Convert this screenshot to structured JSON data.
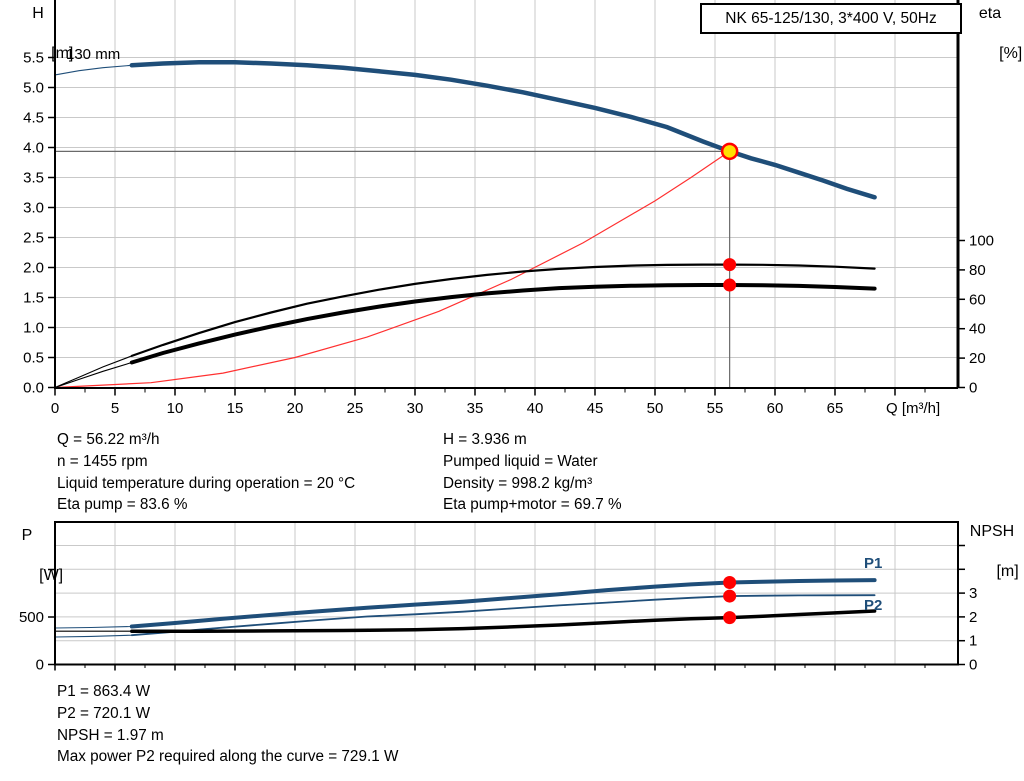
{
  "title_box": "NK 65-125/130, 3*400 V, 50Hz",
  "colors": {
    "curve_blue": "#1f4e79",
    "curve_black": "#000000",
    "system_red": "#ff3030",
    "dot_red": "#ff0000",
    "duty_yellow": "#ffe000",
    "grid": "#c9c9c9",
    "crosshair": "#6a6a6a",
    "axis": "#000000"
  },
  "chart_data": [
    {
      "type": "line",
      "title": "NK 65-125/130, 3*400 V, 50Hz",
      "impeller_trim_label": "130 mm",
      "x_axis": {
        "label": "Q [m³/h]",
        "min": 0,
        "max": 75.2,
        "major_ticks": [
          0,
          5,
          10,
          15,
          20,
          25,
          30,
          35,
          40,
          45,
          50,
          55,
          60,
          65
        ],
        "grid_ticks": [
          5,
          10,
          15,
          20,
          25,
          30,
          35,
          40,
          45,
          50,
          55,
          60,
          65,
          70
        ],
        "minor_step": 2.5
      },
      "y_left_axis": {
        "label_lines": [
          "H",
          "[m]"
        ],
        "ticks": [
          0.0,
          0.5,
          1.0,
          1.5,
          2.0,
          2.5,
          3.0,
          3.5,
          4.0,
          4.5,
          5.0,
          5.5
        ],
        "max": 6.0
      },
      "y_right_axis": {
        "label_lines": [
          "eta",
          "[%]"
        ],
        "ticks": [
          0,
          20,
          40,
          60,
          80,
          100
        ],
        "max": 122
      },
      "series": [
        {
          "name": "head_130mm",
          "axis": "H",
          "legend": "130 mm",
          "thin_until": 6.4,
          "points": [
            [
              0,
              5.21
            ],
            [
              2,
              5.28
            ],
            [
              4,
              5.33
            ],
            [
              6.4,
              5.37
            ],
            [
              9,
              5.4
            ],
            [
              12,
              5.42
            ],
            [
              15,
              5.42
            ],
            [
              18,
              5.4
            ],
            [
              21,
              5.37
            ],
            [
              24,
              5.33
            ],
            [
              27,
              5.27
            ],
            [
              30,
              5.21
            ],
            [
              33,
              5.13
            ],
            [
              36,
              5.03
            ],
            [
              39,
              4.92
            ],
            [
              42,
              4.79
            ],
            [
              45,
              4.66
            ],
            [
              48,
              4.51
            ],
            [
              51,
              4.34
            ],
            [
              54,
              4.1
            ],
            [
              56.22,
              3.936
            ],
            [
              58,
              3.82
            ],
            [
              60,
              3.71
            ],
            [
              62,
              3.58
            ],
            [
              64,
              3.45
            ],
            [
              66,
              3.31
            ],
            [
              68.3,
              3.17
            ]
          ]
        },
        {
          "name": "eta_pump",
          "axis": "eta",
          "legend": "Eta pump",
          "thin_until": 6.4,
          "points": [
            [
              0,
              0
            ],
            [
              2,
              7
            ],
            [
              4,
              14
            ],
            [
              6.4,
              21.5
            ],
            [
              9,
              29
            ],
            [
              12,
              37
            ],
            [
              15,
              44.5
            ],
            [
              18,
              51
            ],
            [
              21,
              57
            ],
            [
              24,
              62
            ],
            [
              27,
              66.5
            ],
            [
              30,
              70.5
            ],
            [
              33,
              73.8
            ],
            [
              36,
              76.6
            ],
            [
              39,
              78.9
            ],
            [
              42,
              80.7
            ],
            [
              45,
              82
            ],
            [
              48,
              82.9
            ],
            [
              51,
              83.4
            ],
            [
              54,
              83.6
            ],
            [
              56.22,
              83.6
            ],
            [
              59,
              83.5
            ],
            [
              62,
              83
            ],
            [
              65,
              82.2
            ],
            [
              68.3,
              80.9
            ]
          ]
        },
        {
          "name": "eta_pump_motor",
          "axis": "eta",
          "legend": "Eta pump+motor",
          "thin_until": 6.4,
          "points": [
            [
              0,
              0
            ],
            [
              2,
              5.5
            ],
            [
              4,
              11
            ],
            [
              6.4,
              17
            ],
            [
              9,
              23.5
            ],
            [
              12,
              30
            ],
            [
              15,
              36
            ],
            [
              18,
              41.5
            ],
            [
              21,
              46.5
            ],
            [
              24,
              51
            ],
            [
              27,
              55
            ],
            [
              30,
              58.5
            ],
            [
              33,
              61.5
            ],
            [
              36,
              64
            ],
            [
              39,
              66
            ],
            [
              42,
              67.6
            ],
            [
              45,
              68.6
            ],
            [
              48,
              69.2
            ],
            [
              51,
              69.6
            ],
            [
              54,
              69.7
            ],
            [
              56.22,
              69.7
            ],
            [
              59,
              69.6
            ],
            [
              62,
              69.1
            ],
            [
              65,
              68.4
            ],
            [
              68.3,
              67.3
            ]
          ]
        },
        {
          "name": "system_curve",
          "axis": "H",
          "legend": "System curve",
          "points": [
            [
              0,
              0
            ],
            [
              8,
              0.08
            ],
            [
              14,
              0.24
            ],
            [
              20,
              0.5
            ],
            [
              26,
              0.84
            ],
            [
              32,
              1.27
            ],
            [
              38,
              1.8
            ],
            [
              44,
              2.41
            ],
            [
              50,
              3.11
            ],
            [
              53,
              3.5
            ],
            [
              56.22,
              3.936
            ]
          ]
        }
      ],
      "duty_point": {
        "q": 56.22,
        "h": 3.936,
        "eta_pump": 83.6,
        "eta_pump_motor": 69.7
      }
    },
    {
      "type": "line",
      "y_left_axis": {
        "label_lines": [
          "P",
          "[W]"
        ],
        "ticks": [
          0,
          500,
          1000
        ],
        "tick_labels": [
          "0",
          "500",
          ""
        ],
        "max": 1500
      },
      "y_right_axis": {
        "label_lines": [
          "NPSH",
          "[m]"
        ],
        "ticks": [
          0,
          1,
          2,
          3,
          4,
          5
        ],
        "tick_labels": [
          "0",
          "1",
          "2",
          "3",
          "",
          ""
        ],
        "max": 6
      },
      "series": [
        {
          "name": "p1",
          "axis": "P",
          "legend": "P1",
          "thin_until": 6.4,
          "points": [
            [
              0,
              384
            ],
            [
              3,
              390
            ],
            [
              6.4,
              400
            ],
            [
              10,
              437
            ],
            [
              14,
              482
            ],
            [
              18,
              522
            ],
            [
              22,
              560
            ],
            [
              26,
              597
            ],
            [
              30,
              630
            ],
            [
              34,
              660
            ],
            [
              38,
              700
            ],
            [
              42,
              740
            ],
            [
              46,
              783
            ],
            [
              50,
              820
            ],
            [
              53,
              843
            ],
            [
              56.22,
              863.4
            ],
            [
              59,
              872
            ],
            [
              62,
              879
            ],
            [
              65,
              884
            ],
            [
              68.3,
              888
            ]
          ]
        },
        {
          "name": "p2",
          "axis": "P",
          "legend": "P2",
          "thin_until": 6.4,
          "points": [
            [
              0,
              290
            ],
            [
              3,
              296
            ],
            [
              6.4,
              308
            ],
            [
              10,
              345
            ],
            [
              14,
              388
            ],
            [
              18,
              428
            ],
            [
              22,
              468
            ],
            [
              26,
              505
            ],
            [
              30,
              528
            ],
            [
              34,
              556
            ],
            [
              38,
              590
            ],
            [
              42,
              622
            ],
            [
              46,
              652
            ],
            [
              50,
              682
            ],
            [
              53,
              702
            ],
            [
              56.22,
              720.1
            ],
            [
              59,
              724
            ],
            [
              62,
              727
            ],
            [
              65,
              728.5
            ],
            [
              68.3,
              729.1
            ]
          ]
        },
        {
          "name": "npsh",
          "axis": "NPSH",
          "legend": "NPSH",
          "thin_until": 6.4,
          "points": [
            [
              0,
              1.4
            ],
            [
              6.4,
              1.4
            ],
            [
              12,
              1.4
            ],
            [
              18,
              1.41
            ],
            [
              24,
              1.43
            ],
            [
              30,
              1.46
            ],
            [
              34,
              1.51
            ],
            [
              38,
              1.58
            ],
            [
              42,
              1.66
            ],
            [
              46,
              1.76
            ],
            [
              50,
              1.86
            ],
            [
              53,
              1.92
            ],
            [
              56.22,
              1.97
            ],
            [
              59,
              2.03
            ],
            [
              62,
              2.1
            ],
            [
              65,
              2.17
            ],
            [
              68.3,
              2.25
            ]
          ]
        }
      ],
      "duty_point": {
        "q": 56.22,
        "p1": 863.4,
        "p2": 720.1,
        "npsh": 1.97
      }
    }
  ],
  "curve_labels": {
    "p1": "P1",
    "p2": "P2"
  },
  "operating_data_left": [
    "Q = 56.22 m³/h",
    "n = 1455 rpm",
    "Liquid temperature during operation = 20 °C",
    "Eta pump = 83.6 %"
  ],
  "operating_data_right": [
    "H = 3.936 m",
    "Pumped liquid = Water",
    "Density = 998.2 kg/m³",
    "Eta pump+motor = 69.7 %"
  ],
  "power_data": [
    "P1 = 863.4 W",
    "P2 = 720.1 W",
    "NPSH = 1.97 m",
    "Max power P2 required along the curve = 729.1 W"
  ]
}
